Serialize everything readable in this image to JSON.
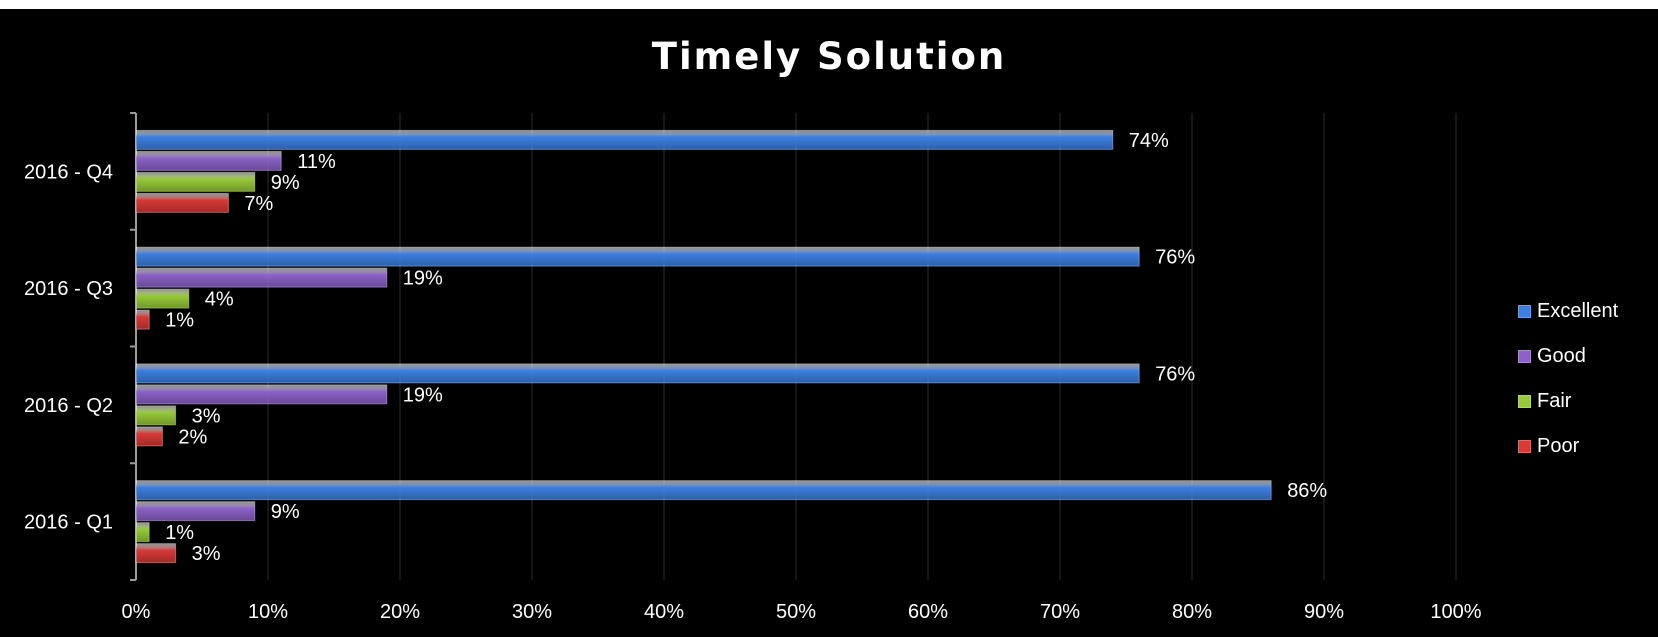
{
  "chart_data": {
    "type": "bar",
    "orientation": "horizontal",
    "title": "Timely Solution",
    "categories": [
      "2016 - Q1",
      "2016 - Q2",
      "2016 - Q3",
      "2016 - Q4"
    ],
    "series": [
      {
        "name": "Excellent",
        "color": "#3d7fe0",
        "values": [
          86,
          76,
          76,
          74
        ]
      },
      {
        "name": "Good",
        "color": "#8c62c8",
        "values": [
          9,
          19,
          19,
          11
        ]
      },
      {
        "name": "Fair",
        "color": "#97c93a",
        "values": [
          1,
          3,
          4,
          9
        ]
      },
      {
        "name": "Poor",
        "color": "#d83a36",
        "values": [
          3,
          2,
          1,
          7
        ]
      }
    ],
    "data_labels": [
      [
        "86%",
        "9%",
        "1%",
        "3%"
      ],
      [
        "76%",
        "19%",
        "3%",
        "2%"
      ],
      [
        "76%",
        "19%",
        "4%",
        "1%"
      ],
      [
        "74%",
        "11%",
        "9%",
        "7%"
      ]
    ],
    "x_tick_labels": [
      "0%",
      "10%",
      "20%",
      "30%",
      "40%",
      "50%",
      "60%",
      "70%",
      "80%",
      "90%",
      "100%"
    ],
    "xlim": [
      0,
      100
    ],
    "grid": true,
    "legend_position": "right",
    "background": "#000000",
    "text_color": "#ffffff"
  }
}
